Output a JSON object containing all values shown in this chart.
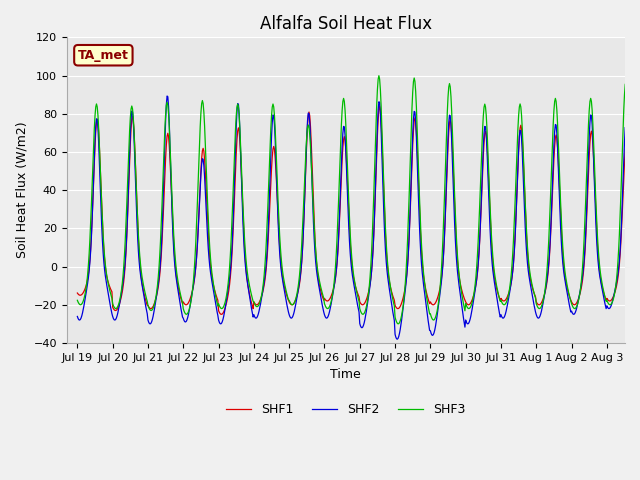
{
  "title": "Alfalfa Soil Heat Flux",
  "xlabel": "Time",
  "ylabel": "Soil Heat Flux (W/m2)",
  "ylim": [
    -40,
    120
  ],
  "annotation": "TA_met",
  "legend": [
    "SHF1",
    "SHF2",
    "SHF3"
  ],
  "colors": [
    "#dd0000",
    "#0000dd",
    "#00bb00"
  ],
  "fig_facecolor": "#f0f0f0",
  "ax_facecolor": "#e8e8e8",
  "grid_color": "#ffffff",
  "title_fontsize": 12,
  "label_fontsize": 9,
  "tick_fontsize": 8,
  "x_tick_labels": [
    "Jul 19",
    "Jul 20",
    "Jul 21",
    "Jul 22",
    "Jul 23",
    "Jul 24",
    "Jul 25",
    "Jul 26",
    "Jul 27",
    "Jul 28",
    "Jul 29",
    "Jul 30",
    "Jul 31",
    "Aug 1",
    "Aug 2",
    "Aug 3"
  ],
  "x_tick_positions": [
    0,
    1,
    2,
    3,
    4,
    5,
    6,
    7,
    8,
    9,
    10,
    11,
    12,
    13,
    14,
    15
  ],
  "shf1_peaks": [
    78,
    80,
    71,
    63,
    74,
    64,
    82,
    69,
    85,
    79,
    78,
    72,
    75,
    70,
    72,
    68
  ],
  "shf2_peaks": [
    78,
    82,
    90,
    57,
    86,
    80,
    81,
    74,
    87,
    82,
    80,
    74,
    72,
    75,
    80,
    77
  ],
  "shf3_peaks": [
    86,
    85,
    87,
    88,
    86,
    86,
    75,
    89,
    101,
    100,
    97,
    86,
    86,
    89,
    89,
    98
  ],
  "shf1_troughs": [
    -15,
    -23,
    -22,
    -20,
    -25,
    -20,
    -20,
    -18,
    -20,
    -22,
    -20,
    -20,
    -18,
    -20,
    -20,
    -18
  ],
  "shf2_troughs": [
    -28,
    -28,
    -30,
    -29,
    -30,
    -27,
    -27,
    -27,
    -32,
    -38,
    -36,
    -30,
    -27,
    -27,
    -25,
    -22
  ],
  "shf3_troughs": [
    -20,
    -22,
    -23,
    -25,
    -22,
    -21,
    -20,
    -22,
    -25,
    -30,
    -28,
    -22,
    -20,
    -22,
    -22,
    -20
  ]
}
